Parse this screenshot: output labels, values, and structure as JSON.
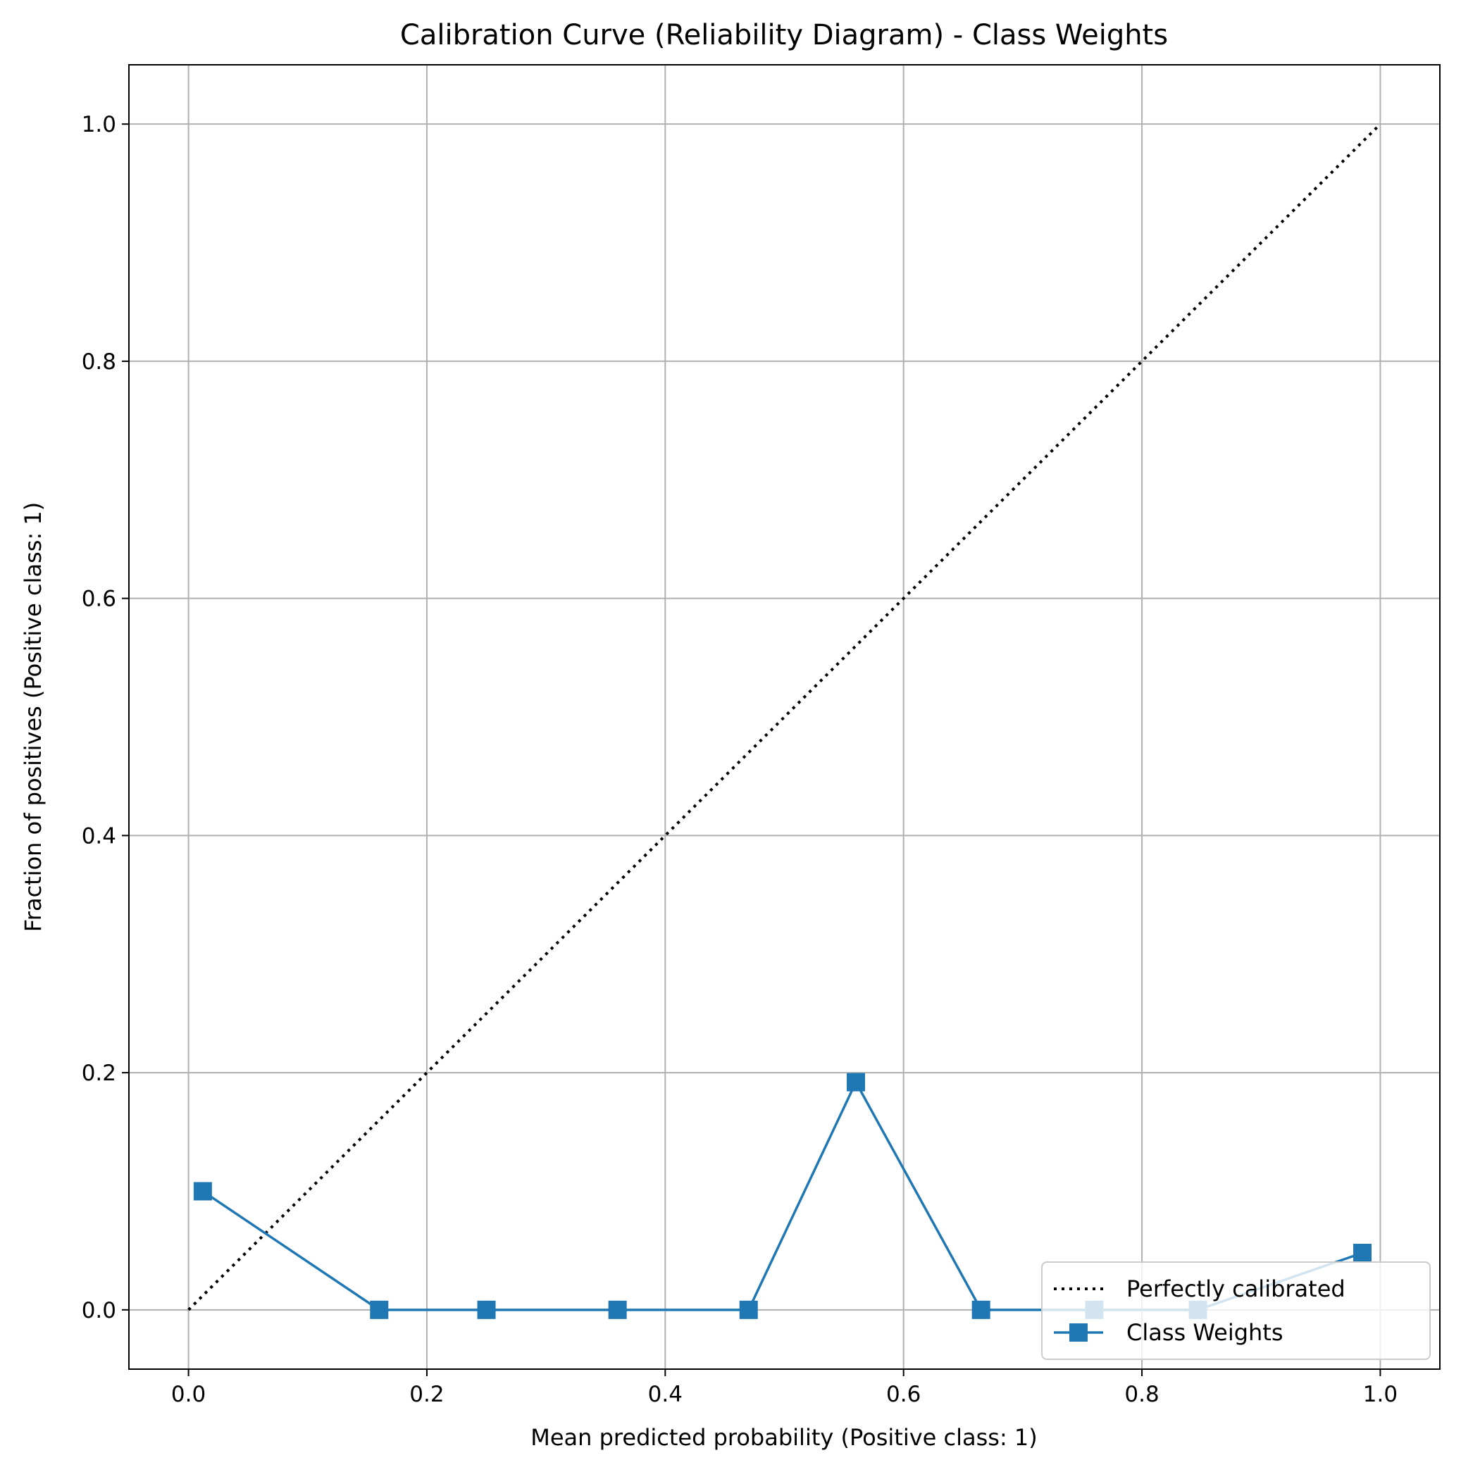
{
  "chart_data": {
    "type": "line",
    "title": "Calibration Curve (Reliability Diagram) - Class Weights",
    "xlabel": "Mean predicted probability (Positive class: 1)",
    "ylabel": "Fraction of positives (Positive class: 1)",
    "xlim": [
      -0.05,
      1.05
    ],
    "ylim": [
      -0.05,
      1.05
    ],
    "xticks": [
      "0.0",
      "0.2",
      "0.4",
      "0.6",
      "0.8",
      "1.0"
    ],
    "yticks": [
      "0.0",
      "0.2",
      "0.4",
      "0.6",
      "0.8",
      "1.0"
    ],
    "grid": true,
    "legend_position": "lower right",
    "series": [
      {
        "name": "Perfectly calibrated",
        "style": "dotted",
        "color": "#000000",
        "x": [
          0,
          1
        ],
        "y": [
          0,
          1
        ]
      },
      {
        "name": "Class Weights",
        "style": "solid",
        "marker": "square",
        "color": "#1f77b4",
        "x": [
          0.012,
          0.16,
          0.25,
          0.36,
          0.47,
          0.56,
          0.665,
          0.76,
          0.847,
          0.985
        ],
        "y": [
          0.1,
          0.0,
          0.0,
          0.0,
          0.0,
          0.192,
          0.0,
          0.0,
          0.0,
          0.048
        ]
      }
    ]
  }
}
